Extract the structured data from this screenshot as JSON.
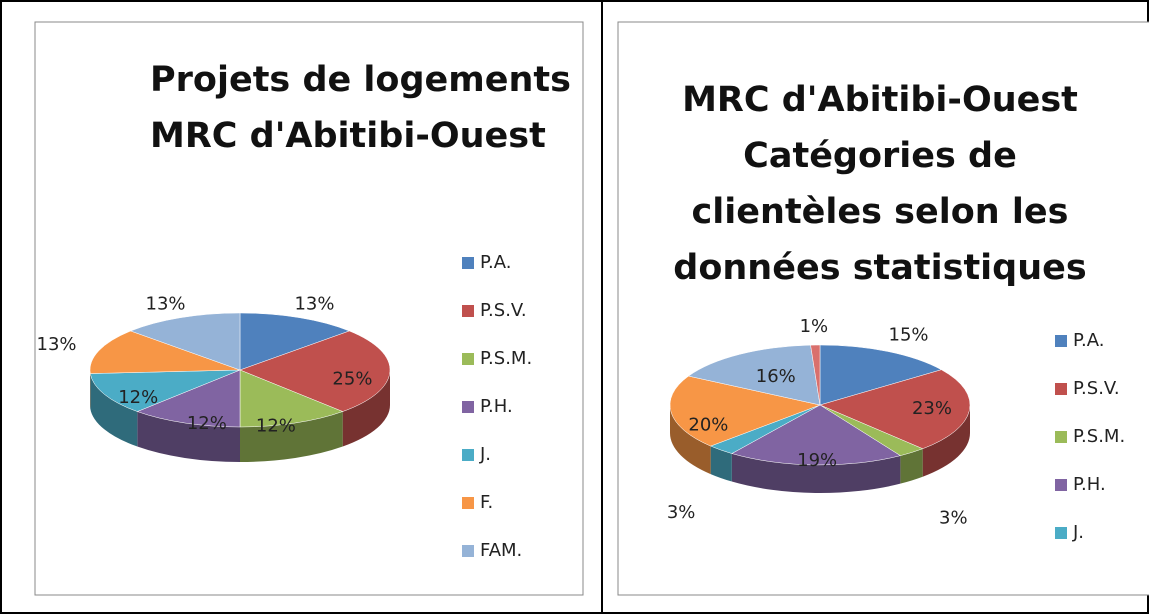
{
  "charts": [
    {
      "type": "pie",
      "title": "Projets de logements MRC d'Abitibi-Ouest",
      "categories": [
        "P.A.",
        "P.S.V.",
        "P.S.M.",
        "P.H.",
        "J.",
        "F.",
        "FAM."
      ],
      "values": [
        13,
        25,
        12,
        12,
        12,
        13,
        13
      ],
      "value_labels": [
        "13%",
        "25%",
        "12%",
        "12%",
        "12%",
        "13%",
        "13%"
      ],
      "colors": [
        "#4f81bd",
        "#c0504d",
        "#9bbb59",
        "#8064a2",
        "#4bacc6",
        "#f79646",
        "#95b3d7"
      ],
      "legend": "right"
    },
    {
      "type": "pie",
      "title": "MRC d'Abitibi-Ouest Catégories de clientèles selon les données statistiques",
      "categories": [
        "P.A.",
        "P.S.V.",
        "P.S.M.",
        "P.H.",
        "J.",
        null,
        null,
        null
      ],
      "values": [
        15,
        23,
        3,
        19,
        3,
        20,
        16,
        1
      ],
      "value_labels": [
        "15%",
        "23%",
        "3%",
        "19%",
        "3%",
        "20%",
        "16%",
        "1%"
      ],
      "colors": [
        "#4f81bd",
        "#c0504d",
        "#9bbb59",
        "#8064a2",
        "#4bacc6",
        "#f79646",
        "#95b3d7",
        "#d9706d"
      ],
      "legend": "right"
    }
  ]
}
